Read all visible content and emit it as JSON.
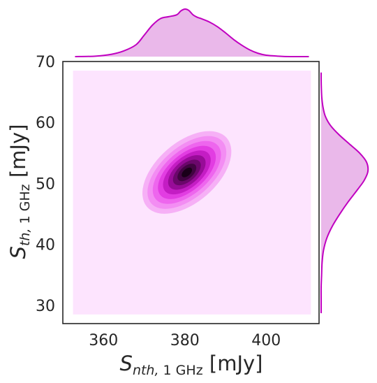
{
  "chart_data": {
    "type": "kde_joint",
    "xlabel": {
      "base": "S",
      "sub_italic": "nth,",
      "sub_roman": " 1 GHz",
      "unit": " [mJy]"
    },
    "ylabel": {
      "base": "S",
      "sub_italic": "th,",
      "sub_roman": " 1 GHz",
      "unit": " [mJy]"
    },
    "xlim": [
      350,
      413
    ],
    "ylim": [
      27,
      70
    ],
    "x_ticks": [
      360,
      380,
      400
    ],
    "y_ticks": [
      30,
      40,
      50,
      60,
      70
    ],
    "grid": false,
    "colors": {
      "line": "#c000c0",
      "fill": "#eab8ea",
      "background_fill": "#fde4fe",
      "darkest": "#1a0019"
    },
    "joint_kde": {
      "background_extent": {
        "x": [
          352.5,
          411
        ],
        "y": [
          28.5,
          68.5
        ]
      },
      "center": [
        380.5,
        51.8
      ],
      "levels": [
        {
          "rx": 14.5,
          "ry": 3.9,
          "fill": "#f6b0f6"
        },
        {
          "rx": 13.0,
          "ry": 3.3,
          "fill": "#f38df3"
        },
        {
          "rx": 11.3,
          "ry": 2.8,
          "fill": "#ee66ee"
        },
        {
          "rx": 9.6,
          "ry": 2.35,
          "fill": "#e23de2"
        },
        {
          "rx": 7.9,
          "ry": 1.95,
          "fill": "#c41dc4"
        },
        {
          "rx": 6.2,
          "ry": 1.55,
          "fill": "#980c98"
        },
        {
          "rx": 4.6,
          "ry": 1.15,
          "fill": "#6b076b"
        },
        {
          "rx": 3.1,
          "ry": 0.8,
          "fill": "#410441"
        },
        {
          "rx": 1.7,
          "ry": 0.45,
          "fill": "#1a0019"
        }
      ],
      "angle_deg": -40.8
    },
    "marginal_x": {
      "x": [
        353,
        358,
        362,
        365,
        368,
        370,
        372,
        374,
        376,
        378,
        379,
        380,
        381,
        382,
        383,
        384,
        386,
        388,
        390,
        392,
        394,
        396,
        398,
        400,
        403,
        406,
        410.5
      ],
      "density": [
        0.0,
        0.01,
        0.05,
        0.12,
        0.25,
        0.45,
        0.66,
        0.8,
        0.84,
        0.88,
        0.96,
        1.0,
        0.97,
        0.88,
        0.83,
        0.8,
        0.73,
        0.63,
        0.5,
        0.36,
        0.24,
        0.14,
        0.07,
        0.03,
        0.01,
        0.0,
        0.0
      ]
    },
    "marginal_y": {
      "y": [
        28.7,
        31,
        33,
        35,
        37,
        39,
        41,
        43,
        45,
        47,
        49,
        50.5,
        52,
        53.5,
        55,
        56.5,
        58,
        59.5,
        61,
        62.5,
        64,
        65.5,
        67,
        68.2
      ],
      "density": [
        0.0,
        0.0,
        0.0,
        0.01,
        0.02,
        0.05,
        0.12,
        0.24,
        0.4,
        0.58,
        0.78,
        0.92,
        1.0,
        0.97,
        0.82,
        0.6,
        0.38,
        0.2,
        0.09,
        0.04,
        0.015,
        0.005,
        0.0,
        0.0
      ]
    }
  }
}
